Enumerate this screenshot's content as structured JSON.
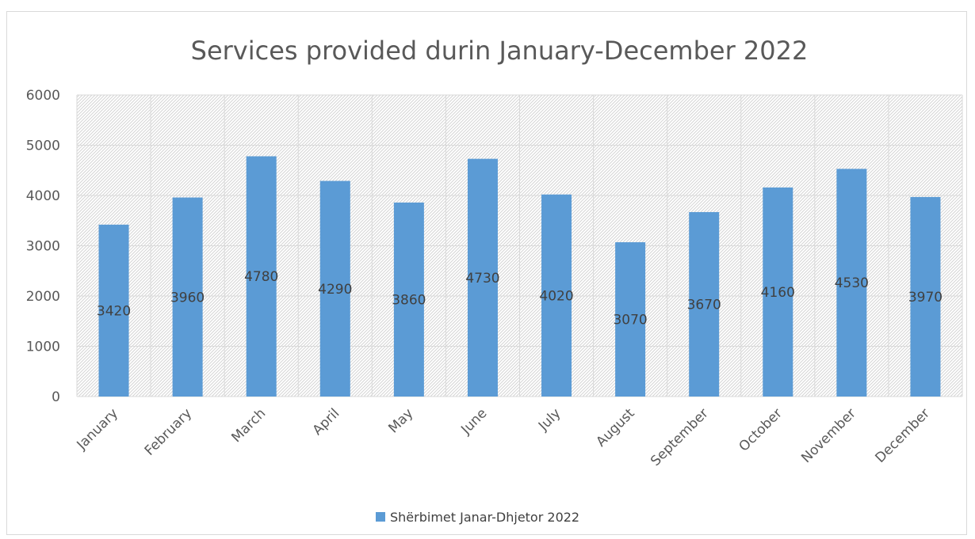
{
  "chart_data": {
    "type": "bar",
    "title": "Services provided durin January-December 2022",
    "categories": [
      "January",
      "February",
      "March",
      "April",
      "May",
      "June",
      "July",
      "August",
      "September",
      "October",
      "November",
      "December"
    ],
    "series": [
      {
        "name": "Shërbimet Janar-Dhjetor 2022",
        "values": [
          3420,
          3960,
          4780,
          4290,
          3860,
          4730,
          4020,
          3070,
          3670,
          4160,
          4530,
          3970
        ],
        "color": "#5b9bd5"
      }
    ],
    "ylim": [
      0,
      6000
    ],
    "yticks": [
      "0",
      "1000",
      "2000",
      "3000",
      "4000",
      "5000",
      "6000"
    ],
    "grid": true,
    "legend": "bottom",
    "plot_background": "hatched"
  }
}
